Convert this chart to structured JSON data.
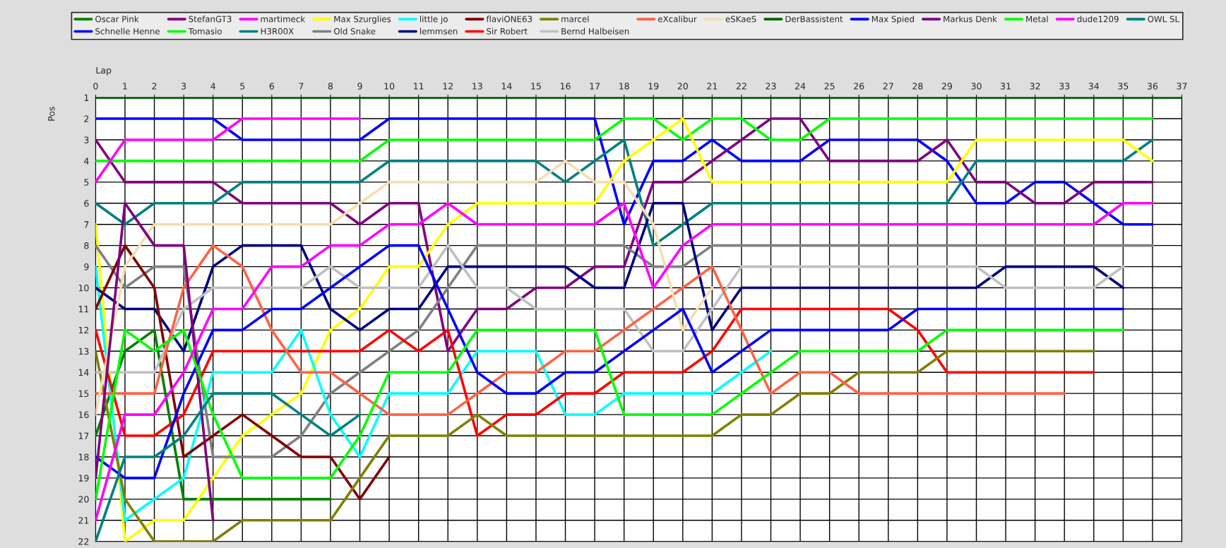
{
  "chart_data": {
    "type": "line",
    "xlabel": "Lap",
    "ylabel": "Pos",
    "x": [
      0,
      1,
      2,
      3,
      4,
      5,
      6,
      7,
      8,
      9,
      10,
      11,
      12,
      13,
      14,
      15,
      16,
      17,
      18,
      19,
      20,
      21,
      22,
      23,
      24,
      25,
      26,
      27,
      28,
      29,
      30,
      31,
      32,
      33,
      34,
      35,
      36,
      37
    ],
    "xlim": [
      0,
      37
    ],
    "xticks": [
      0,
      1,
      2,
      3,
      4,
      5,
      6,
      7,
      8,
      9,
      10,
      11,
      12,
      13,
      14,
      15,
      16,
      17,
      18,
      19,
      20,
      21,
      22,
      23,
      24,
      25,
      26,
      27,
      28,
      29,
      30,
      31,
      32,
      33,
      34,
      35,
      36,
      37
    ],
    "ylim": [
      22,
      1
    ],
    "yticks": [
      1,
      2,
      3,
      4,
      5,
      6,
      7,
      8,
      9,
      10,
      11,
      12,
      13,
      14,
      15,
      16,
      17,
      18,
      19,
      20,
      21,
      22
    ],
    "grid": true,
    "legend": "top",
    "marker": "none",
    "line_style": "solid",
    "series": [
      {
        "name": "Oscar Pink",
        "color": "#008000",
        "values": [
          17,
          13,
          12,
          20,
          20,
          20,
          20,
          20,
          20,
          null,
          null,
          null,
          null,
          null,
          null,
          null,
          null,
          null,
          null,
          null,
          null,
          null,
          null,
          null,
          null,
          null,
          null,
          null,
          null,
          null,
          null,
          null,
          null,
          null,
          null,
          null,
          null,
          null
        ]
      },
      {
        "name": "Schnelle Henne",
        "color": "#0000ff",
        "values": [
          2,
          2,
          2,
          2,
          2,
          3,
          3,
          3,
          3,
          3,
          2,
          2,
          2,
          2,
          2,
          2,
          2,
          2,
          7,
          4,
          4,
          3,
          4,
          4,
          4,
          3,
          3,
          3,
          3,
          4,
          6,
          6,
          5,
          5,
          6,
          7,
          7,
          null
        ]
      },
      {
        "name": "StefanGT3",
        "color": "#800080",
        "values": [
          3,
          5,
          5,
          5,
          5,
          6,
          6,
          6,
          6,
          7,
          6,
          6,
          13,
          11,
          11,
          10,
          10,
          9,
          9,
          5,
          5,
          4,
          3,
          2,
          2,
          4,
          4,
          4,
          4,
          3,
          5,
          5,
          6,
          6,
          5,
          5,
          5,
          null
        ]
      },
      {
        "name": "Tomasio",
        "color": "#00ff00",
        "values": [
          4,
          4,
          4,
          4,
          4,
          4,
          4,
          4,
          4,
          4,
          3,
          3,
          3,
          3,
          3,
          3,
          3,
          3,
          2,
          2,
          3,
          2,
          2,
          3,
          3,
          2,
          2,
          2,
          2,
          2,
          2,
          2,
          2,
          2,
          2,
          2,
          2,
          null
        ]
      },
      {
        "name": "martimeck",
        "color": "#ff00ff",
        "values": [
          5,
          3,
          3,
          3,
          3,
          2,
          2,
          2,
          2,
          2,
          null,
          null,
          null,
          null,
          null,
          null,
          null,
          null,
          null,
          null,
          null,
          null,
          null,
          null,
          null,
          null,
          null,
          null,
          null,
          null,
          null,
          null,
          null,
          null,
          null,
          null,
          null,
          null
        ]
      },
      {
        "name": "H3R00X",
        "color": "#008080",
        "values": [
          6,
          7,
          6,
          6,
          6,
          5,
          5,
          5,
          5,
          5,
          4,
          4,
          4,
          4,
          4,
          4,
          5,
          4,
          3,
          8,
          7,
          6,
          6,
          6,
          6,
          6,
          6,
          6,
          6,
          6,
          4,
          4,
          4,
          4,
          4,
          4,
          3,
          null
        ]
      },
      {
        "name": "Max Szurglies",
        "color": "#ffff00",
        "values": [
          7,
          22,
          21,
          21,
          19,
          17,
          16,
          15,
          12,
          11,
          9,
          9,
          7,
          6,
          6,
          6,
          6,
          6,
          4,
          3,
          2,
          5,
          5,
          5,
          5,
          5,
          5,
          5,
          5,
          5,
          3,
          3,
          3,
          3,
          3,
          3,
          4,
          null
        ]
      },
      {
        "name": "Old Snake",
        "color": "#808080",
        "values": [
          8,
          10,
          9,
          9,
          18,
          18,
          18,
          17,
          15,
          14,
          13,
          12,
          10,
          8,
          8,
          8,
          8,
          8,
          8,
          9,
          9,
          8,
          8,
          8,
          8,
          8,
          8,
          8,
          8,
          8,
          8,
          8,
          8,
          8,
          8,
          8,
          8,
          null
        ]
      },
      {
        "name": "little jo",
        "color": "#00ffff",
        "values": [
          9,
          21,
          20,
          19,
          14,
          14,
          14,
          12,
          16,
          18,
          15,
          15,
          15,
          13,
          13,
          13,
          16,
          16,
          15,
          15,
          15,
          15,
          14,
          13,
          null,
          null,
          null,
          null,
          null,
          null,
          null,
          null,
          null,
          null,
          null,
          null,
          null,
          null
        ]
      },
      {
        "name": "lemmsen",
        "color": "#000080",
        "values": [
          10,
          11,
          11,
          13,
          9,
          8,
          8,
          8,
          11,
          12,
          11,
          11,
          9,
          9,
          9,
          9,
          9,
          10,
          10,
          6,
          6,
          12,
          10,
          10,
          10,
          10,
          10,
          10,
          10,
          10,
          10,
          9,
          9,
          9,
          9,
          10,
          null,
          null
        ]
      },
      {
        "name": "flaviONE63",
        "color": "#800000",
        "values": [
          11,
          8,
          10,
          18,
          17,
          16,
          17,
          18,
          18,
          20,
          18,
          null,
          null,
          null,
          null,
          null,
          null,
          null,
          null,
          null,
          null,
          null,
          null,
          null,
          null,
          null,
          null,
          null,
          null,
          null,
          null,
          null,
          null,
          null,
          null,
          null,
          null,
          null
        ]
      },
      {
        "name": "Sir Robert",
        "color": "#ff0000",
        "values": [
          12,
          17,
          17,
          16,
          13,
          13,
          13,
          13,
          13,
          13,
          12,
          13,
          12,
          17,
          16,
          16,
          15,
          15,
          14,
          14,
          14,
          13,
          11,
          11,
          11,
          11,
          11,
          11,
          12,
          14,
          14,
          14,
          14,
          14,
          14,
          null,
          null,
          null
        ]
      },
      {
        "name": "marcel",
        "color": "#808000",
        "values": [
          13,
          20,
          22,
          22,
          22,
          21,
          21,
          21,
          21,
          19,
          17,
          17,
          17,
          16,
          17,
          17,
          17,
          17,
          17,
          17,
          17,
          17,
          16,
          16,
          15,
          15,
          14,
          14,
          14,
          13,
          13,
          13,
          13,
          13,
          13,
          null,
          null,
          null
        ]
      },
      {
        "name": "Bernd Halbeisen",
        "color": "#c0c0c0",
        "values": [
          14,
          14,
          14,
          11,
          10,
          10,
          10,
          10,
          9,
          10,
          10,
          10,
          8,
          10,
          10,
          11,
          11,
          11,
          11,
          13,
          13,
          11,
          9,
          9,
          9,
          9,
          9,
          9,
          9,
          9,
          9,
          10,
          10,
          10,
          10,
          9,
          null,
          null
        ]
      },
      {
        "name": "eXcalibur",
        "color": "#ff6347",
        "values": [
          15,
          15,
          15,
          10,
          8,
          9,
          12,
          14,
          14,
          15,
          16,
          16,
          16,
          15,
          14,
          14,
          13,
          13,
          12,
          11,
          10,
          9,
          12,
          15,
          14,
          14,
          15,
          15,
          15,
          15,
          15,
          15,
          15,
          15,
          null,
          null,
          null,
          null
        ]
      },
      {
        "name": "eSKaeS",
        "color": "#f5deb3",
        "values": [
          16,
          9,
          7,
          7,
          7,
          7,
          7,
          7,
          7,
          6,
          5,
          5,
          5,
          5,
          5,
          5,
          4,
          5,
          5,
          7,
          12,
          10,
          null,
          null,
          null,
          null,
          null,
          null,
          null,
          null,
          null,
          null,
          null,
          null,
          null,
          null,
          null,
          null
        ]
      },
      {
        "name": "DerBassistent",
        "color": "#006400",
        "values": [
          1,
          1,
          1,
          1,
          1,
          1,
          1,
          1,
          1,
          1,
          1,
          1,
          1,
          1,
          1,
          1,
          1,
          1,
          1,
          1,
          1,
          1,
          1,
          1,
          1,
          1,
          1,
          1,
          1,
          1,
          1,
          1,
          1,
          1,
          1,
          1,
          1,
          1
        ]
      },
      {
        "name": "Max Spied",
        "color": "#0000ff",
        "values": [
          18,
          19,
          19,
          15,
          12,
          12,
          11,
          11,
          10,
          9,
          8,
          8,
          11,
          14,
          15,
          15,
          14,
          14,
          13,
          12,
          11,
          14,
          13,
          12,
          12,
          12,
          12,
          12,
          11,
          11,
          11,
          11,
          11,
          11,
          11,
          11,
          null,
          null
        ]
      },
      {
        "name": "Markus Denk",
        "color": "#800080",
        "values": [
          19,
          6,
          8,
          8,
          21,
          null,
          null,
          null,
          null,
          null,
          null,
          null,
          null,
          null,
          null,
          null,
          null,
          null,
          null,
          null,
          null,
          null,
          null,
          null,
          null,
          null,
          null,
          null,
          null,
          null,
          null,
          null,
          null,
          null,
          null,
          null,
          null,
          null
        ]
      },
      {
        "name": "Metal",
        "color": "#00ff00",
        "values": [
          20,
          12,
          13,
          12,
          16,
          19,
          19,
          19,
          19,
          17,
          14,
          14,
          14,
          12,
          12,
          12,
          12,
          12,
          16,
          16,
          16,
          16,
          15,
          14,
          13,
          13,
          13,
          13,
          13,
          12,
          12,
          12,
          12,
          12,
          12,
          12,
          null,
          null
        ]
      },
      {
        "name": "dude1209",
        "color": "#ff00ff",
        "values": [
          21,
          16,
          16,
          14,
          11,
          11,
          9,
          9,
          8,
          8,
          7,
          7,
          6,
          7,
          7,
          7,
          7,
          7,
          6,
          10,
          8,
          7,
          7,
          7,
          7,
          7,
          7,
          7,
          7,
          7,
          7,
          7,
          7,
          7,
          7,
          6,
          6,
          null
        ]
      },
      {
        "name": "OWL SL",
        "color": "#008080",
        "values": [
          22,
          18,
          18,
          17,
          15,
          15,
          15,
          16,
          17,
          16,
          null,
          null,
          null,
          null,
          null,
          null,
          null,
          null,
          null,
          null,
          null,
          null,
          null,
          null,
          null,
          null,
          null,
          null,
          null,
          null,
          null,
          null,
          null,
          null,
          null,
          null,
          null,
          null
        ]
      }
    ]
  }
}
